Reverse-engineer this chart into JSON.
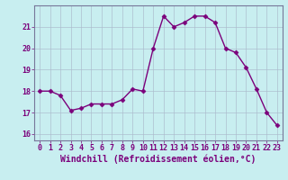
{
  "x": [
    0,
    1,
    2,
    3,
    4,
    5,
    6,
    7,
    8,
    9,
    10,
    11,
    12,
    13,
    14,
    15,
    16,
    17,
    18,
    19,
    20,
    21,
    22,
    23
  ],
  "y": [
    18.0,
    18.0,
    17.8,
    17.1,
    17.2,
    17.4,
    17.4,
    17.4,
    17.6,
    18.1,
    18.0,
    20.0,
    21.5,
    21.0,
    21.2,
    21.5,
    21.5,
    21.2,
    20.0,
    19.8,
    19.1,
    18.1,
    17.0,
    16.4
  ],
  "line_color": "#7b007b",
  "marker": "D",
  "marker_size": 2.5,
  "bg_color": "#c8eef0",
  "grid_color": "#aabbcc",
  "xlabel": "Windchill (Refroidissement éolien,°C)",
  "ylim": [
    15.7,
    22.0
  ],
  "xlim": [
    -0.5,
    23.5
  ],
  "yticks": [
    16,
    17,
    18,
    19,
    20,
    21
  ],
  "xticks": [
    0,
    1,
    2,
    3,
    4,
    5,
    6,
    7,
    8,
    9,
    10,
    11,
    12,
    13,
    14,
    15,
    16,
    17,
    18,
    19,
    20,
    21,
    22,
    23
  ],
  "axis_color": "#7b007b",
  "spine_color": "#777799",
  "tick_label_size": 6.0,
  "xlabel_size": 7.0,
  "linewidth": 1.0
}
